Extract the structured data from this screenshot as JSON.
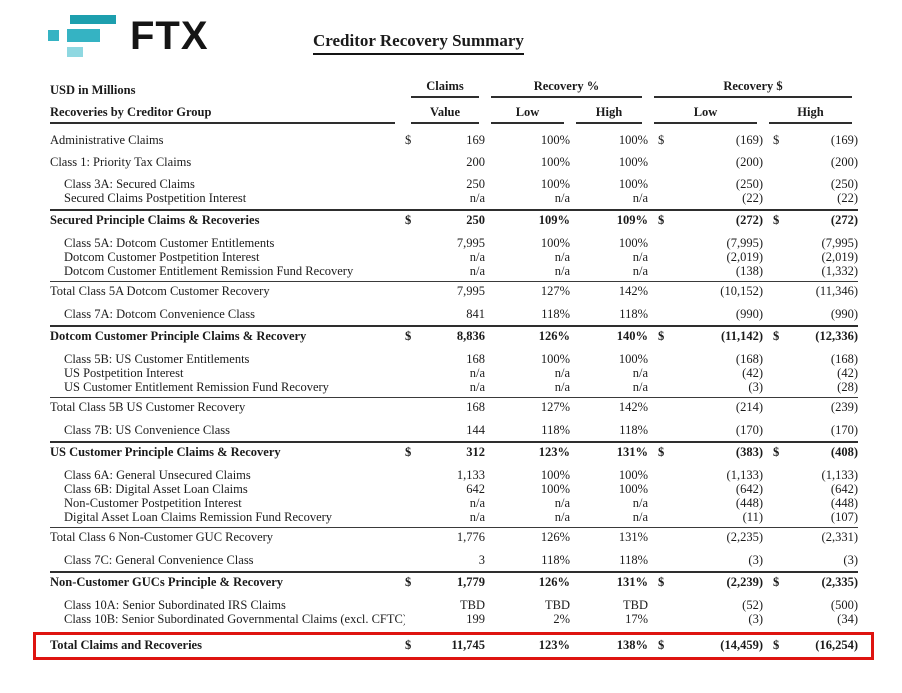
{
  "colors": {
    "highlight_red": "#de1410",
    "logo_dark": "#1d9fae",
    "logo_mid": "#35b3c3",
    "logo_light": "#8fd8e1"
  },
  "logo": {
    "wordmark": "FTX"
  },
  "title": "Creditor Recovery Summary",
  "table": {
    "header": {
      "left_top": "USD in Millions",
      "left_bottom": "Recoveries by Creditor Group",
      "claims": "Claims",
      "claims_sub": "Value",
      "recovery_pct": "Recovery %",
      "recovery_usd": "Recovery $",
      "low": "Low",
      "high": "High"
    },
    "rows": [
      {
        "label": "Administrative Claims",
        "style": "plain",
        "gap": false,
        "d1": "$",
        "claims": "169",
        "pct_low": "100%",
        "pct_high": "100%",
        "d2": "$",
        "usd_low": "(169)",
        "d3": "$",
        "usd_high": "(169)"
      },
      {
        "label": "Class 1: Priority Tax Claims",
        "style": "plain",
        "gap": true,
        "d1": "",
        "claims": "200",
        "pct_low": "100%",
        "pct_high": "100%",
        "d2": "",
        "usd_low": "(200)",
        "d3": "",
        "usd_high": "(200)"
      },
      {
        "label": "Class 3A: Secured Claims",
        "style": "indent",
        "gap": true,
        "d1": "",
        "claims": "250",
        "pct_low": "100%",
        "pct_high": "100%",
        "d2": "",
        "usd_low": "(250)",
        "d3": "",
        "usd_high": "(250)"
      },
      {
        "label": "Secured Claims Postpetition Interest",
        "style": "indent",
        "gap": false,
        "d1": "",
        "claims": "n/a",
        "pct_low": "n/a",
        "pct_high": "n/a",
        "d2": "",
        "usd_low": "(22)",
        "d3": "",
        "usd_high": "(22)"
      },
      {
        "label": "Secured Principle Claims & Recoveries",
        "style": "bold",
        "gap": false,
        "d1": "$",
        "claims": "250",
        "pct_low": "109%",
        "pct_high": "109%",
        "d2": "$",
        "usd_low": "(272)",
        "d3": "$",
        "usd_high": "(272)"
      },
      {
        "label": "Class 5A: Dotcom Customer Entitlements",
        "style": "indent",
        "gap": true,
        "d1": "",
        "claims": "7,995",
        "pct_low": "100%",
        "pct_high": "100%",
        "d2": "",
        "usd_low": "(7,995)",
        "d3": "",
        "usd_high": "(7,995)"
      },
      {
        "label": "Dotcom Customer Postpetition Interest",
        "style": "indent",
        "gap": false,
        "d1": "",
        "claims": "n/a",
        "pct_low": "n/a",
        "pct_high": "n/a",
        "d2": "",
        "usd_low": "(2,019)",
        "d3": "",
        "usd_high": "(2,019)"
      },
      {
        "label": "Dotcom Customer Entitlement Remission Fund Recovery",
        "style": "indent",
        "gap": false,
        "d1": "",
        "claims": "n/a",
        "pct_low": "n/a",
        "pct_high": "n/a",
        "d2": "",
        "usd_low": "(138)",
        "d3": "",
        "usd_high": "(1,332)"
      },
      {
        "label": "Total Class 5A Dotcom Customer Recovery",
        "style": "total",
        "gap": false,
        "d1": "",
        "claims": "7,995",
        "pct_low": "127%",
        "pct_high": "142%",
        "d2": "",
        "usd_low": "(10,152)",
        "d3": "",
        "usd_high": "(11,346)"
      },
      {
        "label": "Class 7A: Dotcom Convenience Class",
        "style": "indent",
        "gap": true,
        "d1": "",
        "claims": "841",
        "pct_low": "118%",
        "pct_high": "118%",
        "d2": "",
        "usd_low": "(990)",
        "d3": "",
        "usd_high": "(990)"
      },
      {
        "label": "Dotcom Customer Principle Claims & Recovery",
        "style": "bold",
        "gap": false,
        "d1": "$",
        "claims": "8,836",
        "pct_low": "126%",
        "pct_high": "140%",
        "d2": "$",
        "usd_low": "(11,142)",
        "d3": "$",
        "usd_high": "(12,336)"
      },
      {
        "label": "Class 5B: US Customer Entitlements",
        "style": "indent",
        "gap": true,
        "d1": "",
        "claims": "168",
        "pct_low": "100%",
        "pct_high": "100%",
        "d2": "",
        "usd_low": "(168)",
        "d3": "",
        "usd_high": "(168)"
      },
      {
        "label": "US Postpetition Interest",
        "style": "indent",
        "gap": false,
        "d1": "",
        "claims": "n/a",
        "pct_low": "n/a",
        "pct_high": "n/a",
        "d2": "",
        "usd_low": "(42)",
        "d3": "",
        "usd_high": "(42)"
      },
      {
        "label": "US Customer Entitlement Remission Fund Recovery",
        "style": "indent",
        "gap": false,
        "d1": "",
        "claims": "n/a",
        "pct_low": "n/a",
        "pct_high": "n/a",
        "d2": "",
        "usd_low": "(3)",
        "d3": "",
        "usd_high": "(28)"
      },
      {
        "label": "Total Class 5B US Customer Recovery",
        "style": "total",
        "gap": false,
        "d1": "",
        "claims": "168",
        "pct_low": "127%",
        "pct_high": "142%",
        "d2": "",
        "usd_low": "(214)",
        "d3": "",
        "usd_high": "(239)"
      },
      {
        "label": "Class 7B: US Convenience Class",
        "style": "indent",
        "gap": true,
        "d1": "",
        "claims": "144",
        "pct_low": "118%",
        "pct_high": "118%",
        "d2": "",
        "usd_low": "(170)",
        "d3": "",
        "usd_high": "(170)"
      },
      {
        "label": "US Customer Principle Claims & Recovery",
        "style": "bold",
        "gap": false,
        "d1": "$",
        "claims": "312",
        "pct_low": "123%",
        "pct_high": "131%",
        "d2": "$",
        "usd_low": "(383)",
        "d3": "$",
        "usd_high": "(408)"
      },
      {
        "label": "Class 6A: General Unsecured Claims",
        "style": "indent",
        "gap": true,
        "d1": "",
        "claims": "1,133",
        "pct_low": "100%",
        "pct_high": "100%",
        "d2": "",
        "usd_low": "(1,133)",
        "d3": "",
        "usd_high": "(1,133)"
      },
      {
        "label": "Class 6B: Digital Asset Loan Claims",
        "style": "indent",
        "gap": false,
        "d1": "",
        "claims": "642",
        "pct_low": "100%",
        "pct_high": "100%",
        "d2": "",
        "usd_low": "(642)",
        "d3": "",
        "usd_high": "(642)"
      },
      {
        "label": "Non-Customer Postpetition Interest",
        "style": "indent",
        "gap": false,
        "d1": "",
        "claims": "n/a",
        "pct_low": "n/a",
        "pct_high": "n/a",
        "d2": "",
        "usd_low": "(448)",
        "d3": "",
        "usd_high": "(448)"
      },
      {
        "label": "Digital Asset Loan Claims Remission Fund Recovery",
        "style": "indent",
        "gap": false,
        "d1": "",
        "claims": "n/a",
        "pct_low": "n/a",
        "pct_high": "n/a",
        "d2": "",
        "usd_low": "(11)",
        "d3": "",
        "usd_high": "(107)"
      },
      {
        "label": "Total Class 6 Non-Customer GUC Recovery",
        "style": "total",
        "gap": false,
        "d1": "",
        "claims": "1,776",
        "pct_low": "126%",
        "pct_high": "131%",
        "d2": "",
        "usd_low": "(2,235)",
        "d3": "",
        "usd_high": "(2,331)"
      },
      {
        "label": "Class 7C: General Convenience Class",
        "style": "indent",
        "gap": true,
        "d1": "",
        "claims": "3",
        "pct_low": "118%",
        "pct_high": "118%",
        "d2": "",
        "usd_low": "(3)",
        "d3": "",
        "usd_high": "(3)"
      },
      {
        "label": "Non-Customer GUCs Principle & Recovery",
        "style": "bold",
        "gap": false,
        "d1": "$",
        "claims": "1,779",
        "pct_low": "126%",
        "pct_high": "131%",
        "d2": "$",
        "usd_low": "(2,239)",
        "d3": "$",
        "usd_high": "(2,335)"
      },
      {
        "label": "Class 10A: Senior Subordinated IRS Claims",
        "style": "indent",
        "gap": true,
        "d1": "",
        "claims": "TBD",
        "pct_low": "TBD",
        "pct_high": "TBD",
        "d2": "",
        "usd_low": "(52)",
        "d3": "",
        "usd_high": "(500)"
      },
      {
        "label": "Class 10B: Senior Subordinated Governmental Claims (excl. CFTC)",
        "style": "indent",
        "gap": false,
        "d1": "",
        "claims": "199",
        "pct_low": "2%",
        "pct_high": "17%",
        "d2": "",
        "usd_low": "(3)",
        "d3": "",
        "usd_high": "(34)"
      },
      {
        "label": "Total Claims and Recoveries",
        "style": "grand",
        "gap": false,
        "d1": "$",
        "claims": "11,745",
        "pct_low": "123%",
        "pct_high": "138%",
        "d2": "$",
        "usd_low": "(14,459)",
        "d3": "$",
        "usd_high": "(16,254)"
      }
    ]
  }
}
